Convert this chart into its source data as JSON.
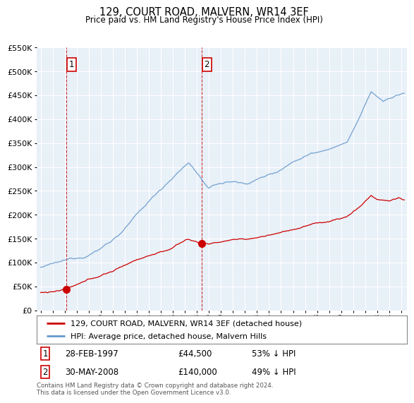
{
  "title": "129, COURT ROAD, MALVERN, WR14 3EF",
  "subtitle": "Price paid vs. HM Land Registry's House Price Index (HPI)",
  "legend_line1": "129, COURT ROAD, MALVERN, WR14 3EF (detached house)",
  "legend_line2": "HPI: Average price, detached house, Malvern Hills",
  "footer": "Contains HM Land Registry data © Crown copyright and database right 2024.\nThis data is licensed under the Open Government Licence v3.0.",
  "transaction1_date": "28-FEB-1997",
  "transaction1_price": "£44,500",
  "transaction1_hpi": "53% ↓ HPI",
  "transaction1_x": 1997.15,
  "transaction1_y": 44500,
  "transaction2_date": "30-MAY-2008",
  "transaction2_price": "£140,000",
  "transaction2_hpi": "49% ↓ HPI",
  "transaction2_x": 2008.41,
  "transaction2_y": 140000,
  "red_color": "#cc0000",
  "blue_color": "#6699cc",
  "background_color": "#dce8f5",
  "grid_color": "#ffffff",
  "plot_bg": "#e8f0f8",
  "ylim": [
    0,
    550000
  ],
  "ytick_max": 550000,
  "xlim_start": 1994.7,
  "xlim_end": 2025.5
}
